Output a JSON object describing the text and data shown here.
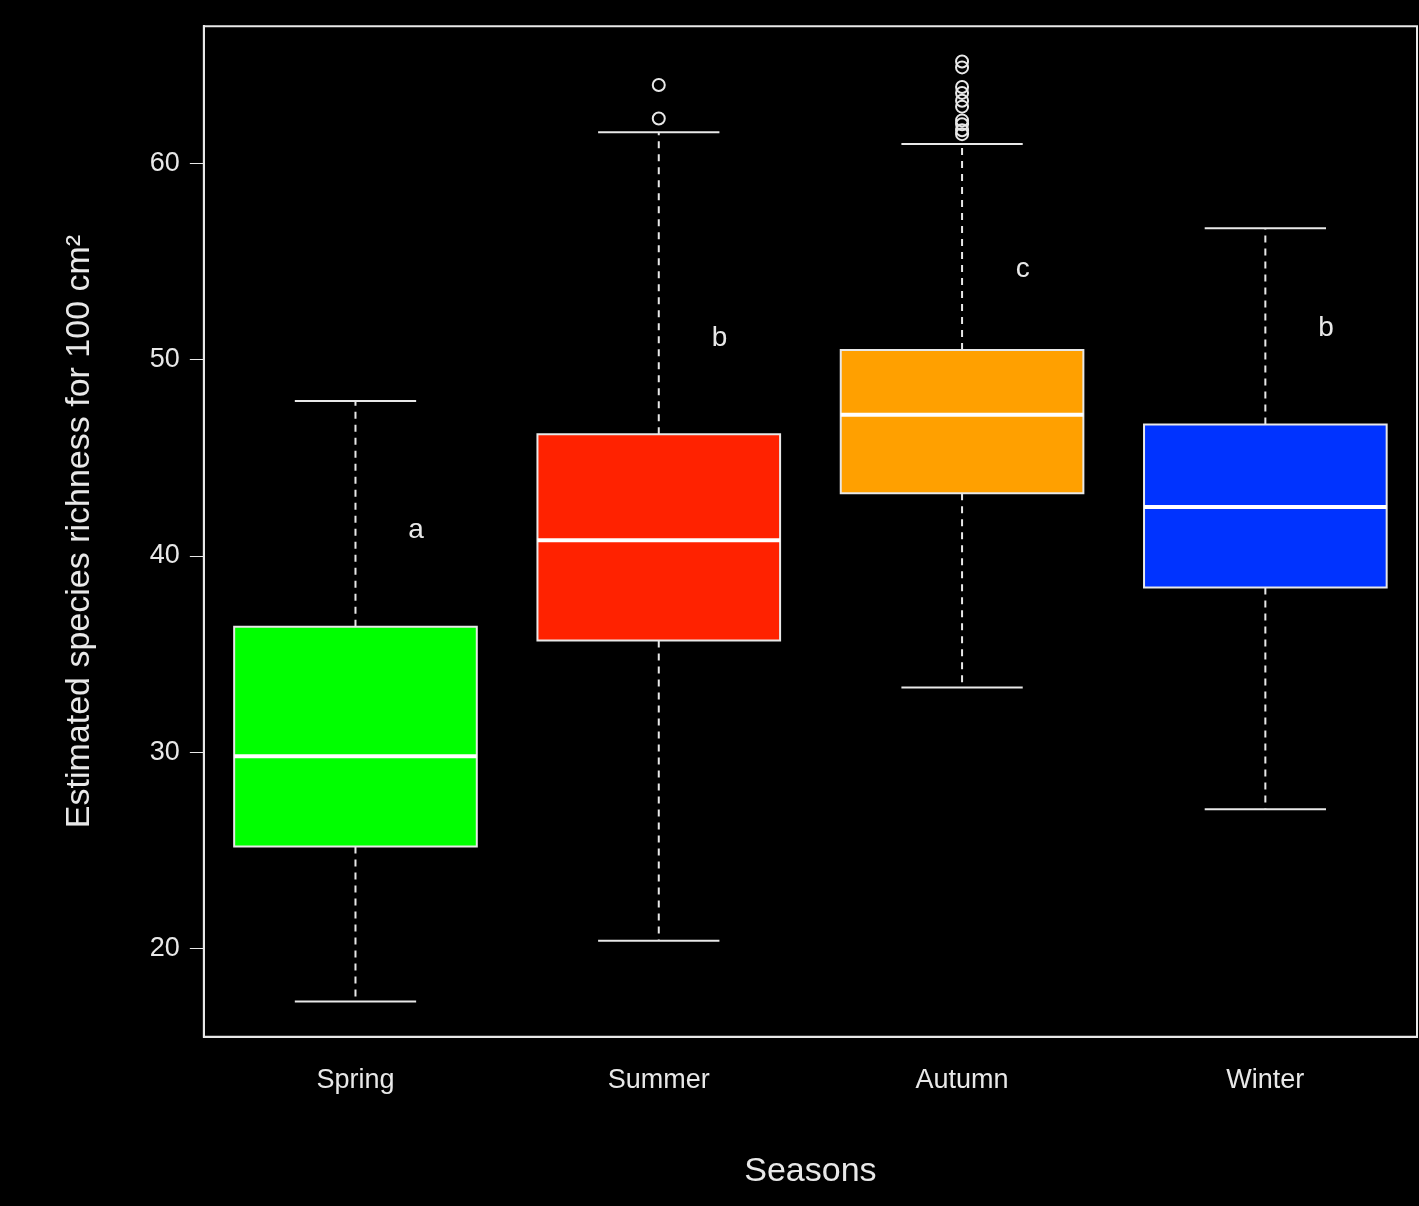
{
  "chart_data": {
    "type": "box",
    "xlabel": "Seasons",
    "ylabel": "Estimated species richness for 100 cm²",
    "categories": [
      "Spring",
      "Summer",
      "Autumn",
      "Winter"
    ],
    "colors": [
      "#00ff00",
      "#ff2200",
      "#ffa000",
      "#0033ff"
    ],
    "boxes": [
      {
        "low": 17.3,
        "q1": 25.2,
        "median": 29.8,
        "q3": 36.4,
        "high": 47.9
      },
      {
        "low": 20.4,
        "q1": 35.7,
        "median": 40.8,
        "q3": 46.2,
        "high": 61.6,
        "outliers": [
          62.3,
          64.0
        ]
      },
      {
        "low": 33.3,
        "q1": 43.2,
        "median": 47.2,
        "q3": 50.5,
        "high": 61.0,
        "outliers": [
          61.5,
          61.7,
          62.0,
          62.2,
          62.9,
          63.2,
          63.6,
          63.9,
          64.9,
          65.2
        ]
      },
      {
        "low": 27.1,
        "q1": 38.4,
        "median": 42.5,
        "q3": 46.7,
        "high": 56.7
      }
    ],
    "ylim": [
      15.5,
      67
    ],
    "yticks": [
      20,
      30,
      40,
      50,
      60
    ],
    "grid": false,
    "legend": false,
    "annotations": [
      {
        "text": "a",
        "x": "Spring",
        "y": 41.3
      },
      {
        "text": "b",
        "x": "Summer",
        "y": 51.1
      },
      {
        "text": "c",
        "x": "Autumn",
        "y": 54.6
      },
      {
        "text": "b",
        "x": "Winter",
        "y": 51.6
      }
    ]
  }
}
